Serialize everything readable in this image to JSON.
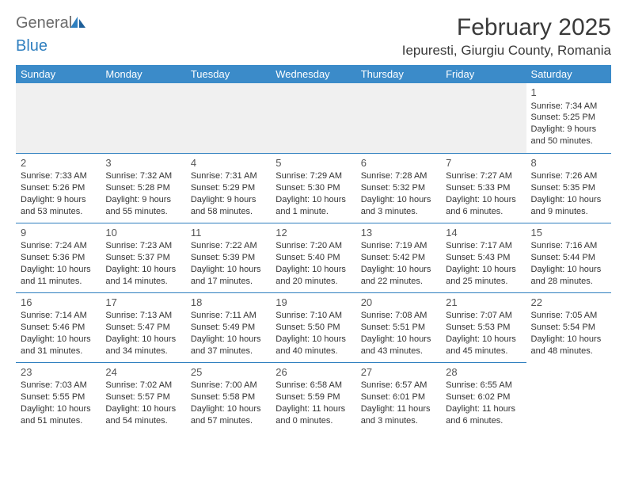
{
  "logo": {
    "text1": "General",
    "text2": "Blue"
  },
  "title": "February 2025",
  "location": "Iepuresti, Giurgiu County, Romania",
  "header_bg": "#3b8bc9",
  "border_color": "#2f7fbf",
  "day_names": [
    "Sunday",
    "Monday",
    "Tuesday",
    "Wednesday",
    "Thursday",
    "Friday",
    "Saturday"
  ],
  "weeks": [
    [
      null,
      null,
      null,
      null,
      null,
      null,
      {
        "n": "1",
        "sr": "7:34 AM",
        "ss": "5:25 PM",
        "dl": "9 hours and 50 minutes."
      }
    ],
    [
      {
        "n": "2",
        "sr": "7:33 AM",
        "ss": "5:26 PM",
        "dl": "9 hours and 53 minutes."
      },
      {
        "n": "3",
        "sr": "7:32 AM",
        "ss": "5:28 PM",
        "dl": "9 hours and 55 minutes."
      },
      {
        "n": "4",
        "sr": "7:31 AM",
        "ss": "5:29 PM",
        "dl": "9 hours and 58 minutes."
      },
      {
        "n": "5",
        "sr": "7:29 AM",
        "ss": "5:30 PM",
        "dl": "10 hours and 1 minute."
      },
      {
        "n": "6",
        "sr": "7:28 AM",
        "ss": "5:32 PM",
        "dl": "10 hours and 3 minutes."
      },
      {
        "n": "7",
        "sr": "7:27 AM",
        "ss": "5:33 PM",
        "dl": "10 hours and 6 minutes."
      },
      {
        "n": "8",
        "sr": "7:26 AM",
        "ss": "5:35 PM",
        "dl": "10 hours and 9 minutes."
      }
    ],
    [
      {
        "n": "9",
        "sr": "7:24 AM",
        "ss": "5:36 PM",
        "dl": "10 hours and 11 minutes."
      },
      {
        "n": "10",
        "sr": "7:23 AM",
        "ss": "5:37 PM",
        "dl": "10 hours and 14 minutes."
      },
      {
        "n": "11",
        "sr": "7:22 AM",
        "ss": "5:39 PM",
        "dl": "10 hours and 17 minutes."
      },
      {
        "n": "12",
        "sr": "7:20 AM",
        "ss": "5:40 PM",
        "dl": "10 hours and 20 minutes."
      },
      {
        "n": "13",
        "sr": "7:19 AM",
        "ss": "5:42 PM",
        "dl": "10 hours and 22 minutes."
      },
      {
        "n": "14",
        "sr": "7:17 AM",
        "ss": "5:43 PM",
        "dl": "10 hours and 25 minutes."
      },
      {
        "n": "15",
        "sr": "7:16 AM",
        "ss": "5:44 PM",
        "dl": "10 hours and 28 minutes."
      }
    ],
    [
      {
        "n": "16",
        "sr": "7:14 AM",
        "ss": "5:46 PM",
        "dl": "10 hours and 31 minutes."
      },
      {
        "n": "17",
        "sr": "7:13 AM",
        "ss": "5:47 PM",
        "dl": "10 hours and 34 minutes."
      },
      {
        "n": "18",
        "sr": "7:11 AM",
        "ss": "5:49 PM",
        "dl": "10 hours and 37 minutes."
      },
      {
        "n": "19",
        "sr": "7:10 AM",
        "ss": "5:50 PM",
        "dl": "10 hours and 40 minutes."
      },
      {
        "n": "20",
        "sr": "7:08 AM",
        "ss": "5:51 PM",
        "dl": "10 hours and 43 minutes."
      },
      {
        "n": "21",
        "sr": "7:07 AM",
        "ss": "5:53 PM",
        "dl": "10 hours and 45 minutes."
      },
      {
        "n": "22",
        "sr": "7:05 AM",
        "ss": "5:54 PM",
        "dl": "10 hours and 48 minutes."
      }
    ],
    [
      {
        "n": "23",
        "sr": "7:03 AM",
        "ss": "5:55 PM",
        "dl": "10 hours and 51 minutes."
      },
      {
        "n": "24",
        "sr": "7:02 AM",
        "ss": "5:57 PM",
        "dl": "10 hours and 54 minutes."
      },
      {
        "n": "25",
        "sr": "7:00 AM",
        "ss": "5:58 PM",
        "dl": "10 hours and 57 minutes."
      },
      {
        "n": "26",
        "sr": "6:58 AM",
        "ss": "5:59 PM",
        "dl": "11 hours and 0 minutes."
      },
      {
        "n": "27",
        "sr": "6:57 AM",
        "ss": "6:01 PM",
        "dl": "11 hours and 3 minutes."
      },
      {
        "n": "28",
        "sr": "6:55 AM",
        "ss": "6:02 PM",
        "dl": "11 hours and 6 minutes."
      },
      null
    ]
  ],
  "labels": {
    "sunrise": "Sunrise:",
    "sunset": "Sunset:",
    "daylight": "Daylight:"
  }
}
